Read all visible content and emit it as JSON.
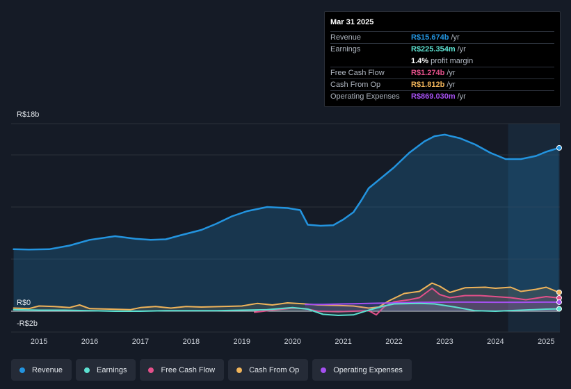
{
  "tooltip": {
    "date": "Mar 31 2025",
    "rows": [
      {
        "label": "Revenue",
        "value": "R$15.674b",
        "unit": "/yr",
        "color": "#2394df"
      },
      {
        "label": "Earnings",
        "value": "R$225.354m",
        "unit": "/yr",
        "color": "#5ce0d0"
      },
      {
        "label": "",
        "value": "1.4%",
        "unit": "profit margin",
        "color": "#ffffff"
      },
      {
        "label": "Free Cash Flow",
        "value": "R$1.274b",
        "unit": "/yr",
        "color": "#e4508a"
      },
      {
        "label": "Cash From Op",
        "value": "R$1.812b",
        "unit": "/yr",
        "color": "#f0b45a"
      },
      {
        "label": "Operating Expenses",
        "value": "R$869.030m",
        "unit": "/yr",
        "color": "#a550f0"
      }
    ]
  },
  "legend": [
    {
      "label": "Revenue",
      "color": "#2394df"
    },
    {
      "label": "Earnings",
      "color": "#5ce0d0"
    },
    {
      "label": "Free Cash Flow",
      "color": "#e4508a"
    },
    {
      "label": "Cash From Op",
      "color": "#f0b45a"
    },
    {
      "label": "Operating Expenses",
      "color": "#a550f0"
    }
  ],
  "chart_data": {
    "type": "line",
    "title": "",
    "ylim": [
      -2,
      18
    ],
    "y_tick_labels": [
      {
        "value": 18,
        "label": "R$18b"
      },
      {
        "value": 0,
        "label": "R$0"
      },
      {
        "value": -2,
        "label": "-R$2b"
      }
    ],
    "x_ticks": [
      "2015",
      "2016",
      "2017",
      "2018",
      "2019",
      "2020",
      "2021",
      "2022",
      "2023",
      "2024",
      "2025"
    ],
    "x_range": [
      2014.45,
      2025.27
    ],
    "forecast_shade_from": 2024.25,
    "series": [
      {
        "name": "Revenue",
        "color": "#2394df",
        "fill": true,
        "x": [
          2014.5,
          2014.8,
          2015.2,
          2015.6,
          2016.0,
          2016.5,
          2016.9,
          2017.2,
          2017.5,
          2017.8,
          2018.2,
          2018.5,
          2018.8,
          2019.1,
          2019.5,
          2019.9,
          2020.15,
          2020.3,
          2020.55,
          2020.8,
          2021.0,
          2021.2,
          2021.35,
          2021.5,
          2021.8,
          2022.0,
          2022.3,
          2022.6,
          2022.8,
          2023.0,
          2023.3,
          2023.6,
          2023.9,
          2024.2,
          2024.5,
          2024.8,
          2025.0,
          2025.25
        ],
        "values": [
          5.95,
          5.92,
          5.95,
          6.3,
          6.85,
          7.2,
          6.95,
          6.85,
          6.9,
          7.3,
          7.8,
          8.4,
          9.1,
          9.6,
          10.0,
          9.9,
          9.7,
          8.3,
          8.2,
          8.25,
          8.8,
          9.5,
          10.6,
          11.8,
          13.0,
          13.8,
          15.2,
          16.3,
          16.8,
          16.95,
          16.6,
          16.0,
          15.2,
          14.6,
          14.6,
          14.9,
          15.3,
          15.674
        ]
      },
      {
        "name": "Earnings",
        "color": "#5ce0d0",
        "x": [
          2014.5,
          2015.0,
          2015.5,
          2016.0,
          2016.5,
          2017.0,
          2017.5,
          2018.0,
          2018.5,
          2019.0,
          2019.5,
          2020.0,
          2020.3,
          2020.6,
          2020.9,
          2021.2,
          2021.5,
          2021.8,
          2022.0,
          2022.5,
          2022.8,
          2023.2,
          2023.6,
          2024.0,
          2024.5,
          2025.0,
          2025.25
        ],
        "values": [
          0.15,
          0.1,
          0.1,
          0.05,
          0.0,
          0.0,
          0.05,
          0.05,
          0.05,
          0.1,
          0.15,
          0.35,
          0.2,
          -0.3,
          -0.4,
          -0.35,
          0.1,
          0.5,
          0.7,
          0.75,
          0.7,
          0.4,
          0.05,
          0.0,
          0.1,
          0.2,
          0.225
        ]
      },
      {
        "name": "Free Cash Flow",
        "color": "#e4508a",
        "x": [
          2019.25,
          2019.6,
          2020.0,
          2020.25,
          2020.5,
          2020.9,
          2021.2,
          2021.5,
          2021.65,
          2021.8,
          2022.0,
          2022.3,
          2022.5,
          2022.75,
          2022.9,
          2023.1,
          2023.4,
          2023.7,
          2024.0,
          2024.3,
          2024.6,
          2025.0,
          2025.25
        ],
        "values": [
          -0.1,
          0.1,
          0.3,
          0.25,
          0.0,
          -0.05,
          0.0,
          0.05,
          -0.35,
          0.4,
          0.9,
          1.1,
          1.3,
          2.2,
          1.6,
          1.3,
          1.5,
          1.5,
          1.4,
          1.3,
          1.1,
          1.4,
          1.274
        ]
      },
      {
        "name": "Cash From Op",
        "color": "#f0b45a",
        "x": [
          2014.5,
          2014.8,
          2015.0,
          2015.3,
          2015.6,
          2015.8,
          2016.0,
          2016.4,
          2016.8,
          2017.0,
          2017.3,
          2017.6,
          2017.9,
          2018.2,
          2018.6,
          2019.0,
          2019.3,
          2019.6,
          2019.9,
          2020.25,
          2020.5,
          2020.9,
          2021.2,
          2021.5,
          2021.7,
          2021.9,
          2022.2,
          2022.5,
          2022.75,
          2022.9,
          2023.1,
          2023.4,
          2023.8,
          2024.0,
          2024.3,
          2024.5,
          2024.8,
          2025.0,
          2025.25
        ],
        "values": [
          0.3,
          0.25,
          0.5,
          0.45,
          0.35,
          0.6,
          0.25,
          0.2,
          0.15,
          0.35,
          0.45,
          0.3,
          0.45,
          0.4,
          0.45,
          0.5,
          0.75,
          0.6,
          0.8,
          0.7,
          0.6,
          0.55,
          0.5,
          0.3,
          0.4,
          1.0,
          1.7,
          1.9,
          2.7,
          2.4,
          1.8,
          2.25,
          2.3,
          2.2,
          2.3,
          1.9,
          2.1,
          2.3,
          1.812
        ]
      },
      {
        "name": "Operating Expenses",
        "color": "#a550f0",
        "x": [
          2020.25,
          2020.6,
          2021.0,
          2021.5,
          2022.0,
          2022.5,
          2023.0,
          2023.5,
          2024.0,
          2024.5,
          2025.0,
          2025.25
        ],
        "values": [
          0.65,
          0.65,
          0.7,
          0.75,
          0.8,
          0.85,
          0.87,
          0.87,
          0.86,
          0.86,
          0.87,
          0.869
        ]
      }
    ]
  }
}
